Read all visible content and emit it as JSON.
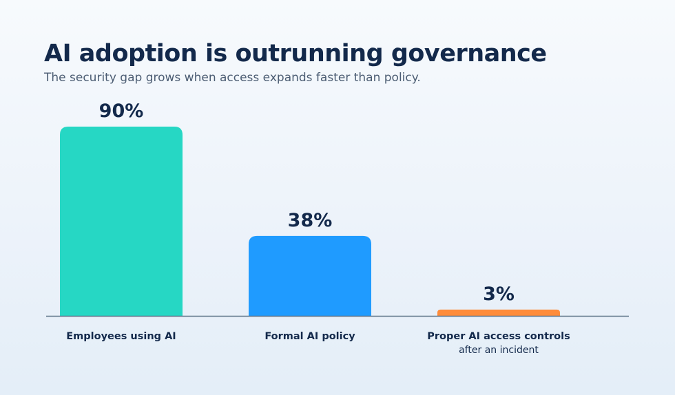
{
  "header": {
    "title": "AI adoption is outrunning governance",
    "subtitle": "The security gap grows when access expands faster than policy."
  },
  "colors": {
    "title": "#13294b",
    "subtitle": "#4c5d73",
    "baseline": "#5d7388"
  },
  "chart_data": {
    "type": "bar",
    "categories": [
      "Employees using AI",
      "Formal AI policy",
      "Proper AI access controls"
    ],
    "category_sublabels": [
      "",
      "",
      "after an incident"
    ],
    "values": [
      90,
      38,
      3
    ],
    "value_labels": [
      "90%",
      "38%",
      "3%"
    ],
    "unit": "%",
    "bar_colors": [
      "#26d7c4",
      "#1f9bff",
      "#ff8c3a"
    ],
    "ylim": [
      0,
      90
    ],
    "grid": false,
    "legend": "none"
  }
}
